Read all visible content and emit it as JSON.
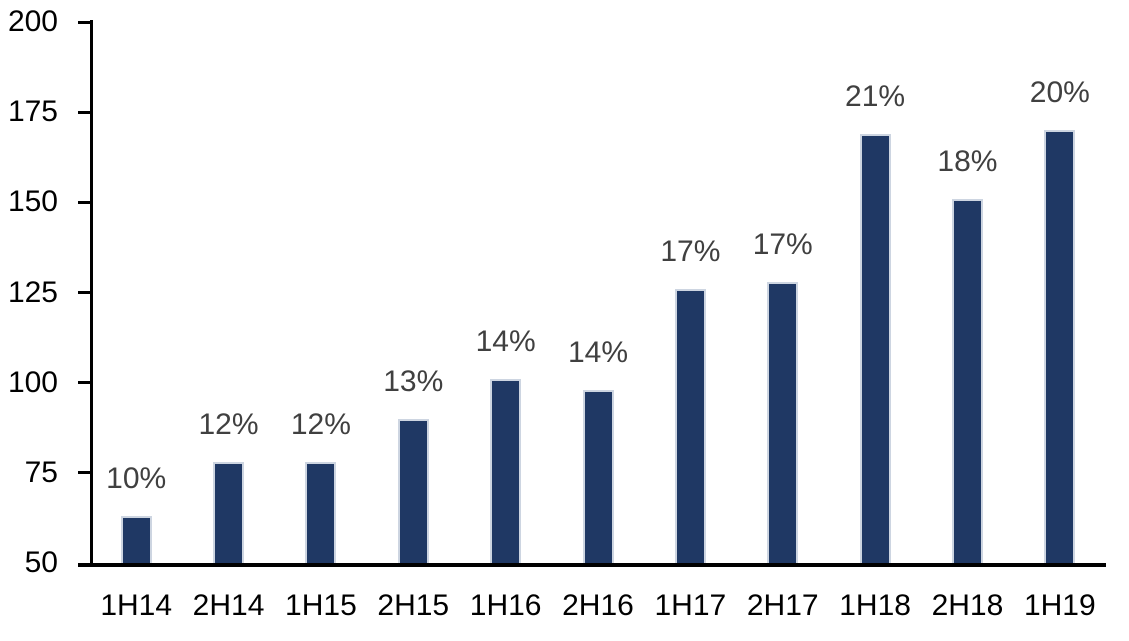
{
  "chart_data": {
    "type": "bar",
    "categories": [
      "1H14",
      "2H14",
      "1H15",
      "2H15",
      "1H16",
      "2H16",
      "1H17",
      "2H17",
      "1H18",
      "2H18",
      "1H19"
    ],
    "values": [
      63,
      78,
      78,
      90,
      101,
      98,
      126,
      128,
      169,
      151,
      170
    ],
    "bar_labels": [
      "10%",
      "12%",
      "12%",
      "13%",
      "14%",
      "14%",
      "17%",
      "17%",
      "21%",
      "18%",
      "20%"
    ],
    "title": "",
    "xlabel": "",
    "ylabel": "",
    "ylim": [
      50,
      200
    ],
    "yticks": [
      50,
      75,
      100,
      125,
      150,
      175,
      200
    ],
    "grid": false,
    "legend": "none",
    "colors": {
      "bar_fill": "#1F3864",
      "bar_border": "#CDD5E1",
      "data_label": "#404040",
      "axis": "#000000",
      "tick_label": "#000000",
      "background": "#FFFFFF"
    }
  }
}
